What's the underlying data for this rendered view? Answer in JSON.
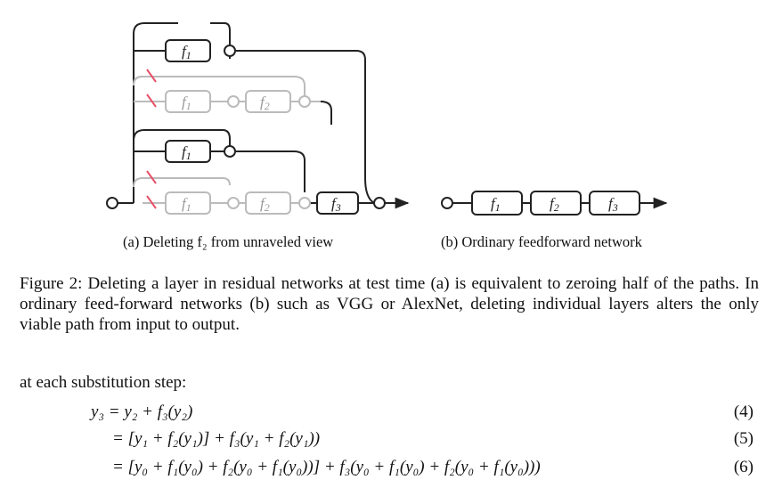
{
  "figure": {
    "function_labels": {
      "f1": "f",
      "f2": "f",
      "f3": "f",
      "s1": "1",
      "s2": "2",
      "s3": "3"
    },
    "colors": {
      "active": "#222222",
      "deleted": "#bbbbbb",
      "cut": "#e8506a"
    },
    "subcaption_a": "(a) Deleting f₂ from unraveled view",
    "subcaption_b": "(b) Ordinary feedforward network"
  },
  "caption": "Figure 2: Deleting a layer in residual networks at test time (a) is equivalent to zeroing half of the paths. In ordinary feed-forward networks (b) such as VGG or AlexNet, deleting individual layers alters the only viable path from input to output.",
  "intro": "at each substitution step:",
  "equations": [
    {
      "lhs": "y₃ = y₂ + f₃(y₂)",
      "number": "(4)"
    },
    {
      "lhs": "= [y₁ + f₂(y₁)]  +  f₃(y₁ + f₂(y₁))",
      "number": "(5)"
    },
    {
      "lhs": "= [y₀ + f₁(y₀) + f₂(y₀ + f₁(y₀))]  +  f₃(y₀ + f₁(y₀) + f₂(y₀ + f₁(y₀)))",
      "number": "(6)"
    }
  ]
}
